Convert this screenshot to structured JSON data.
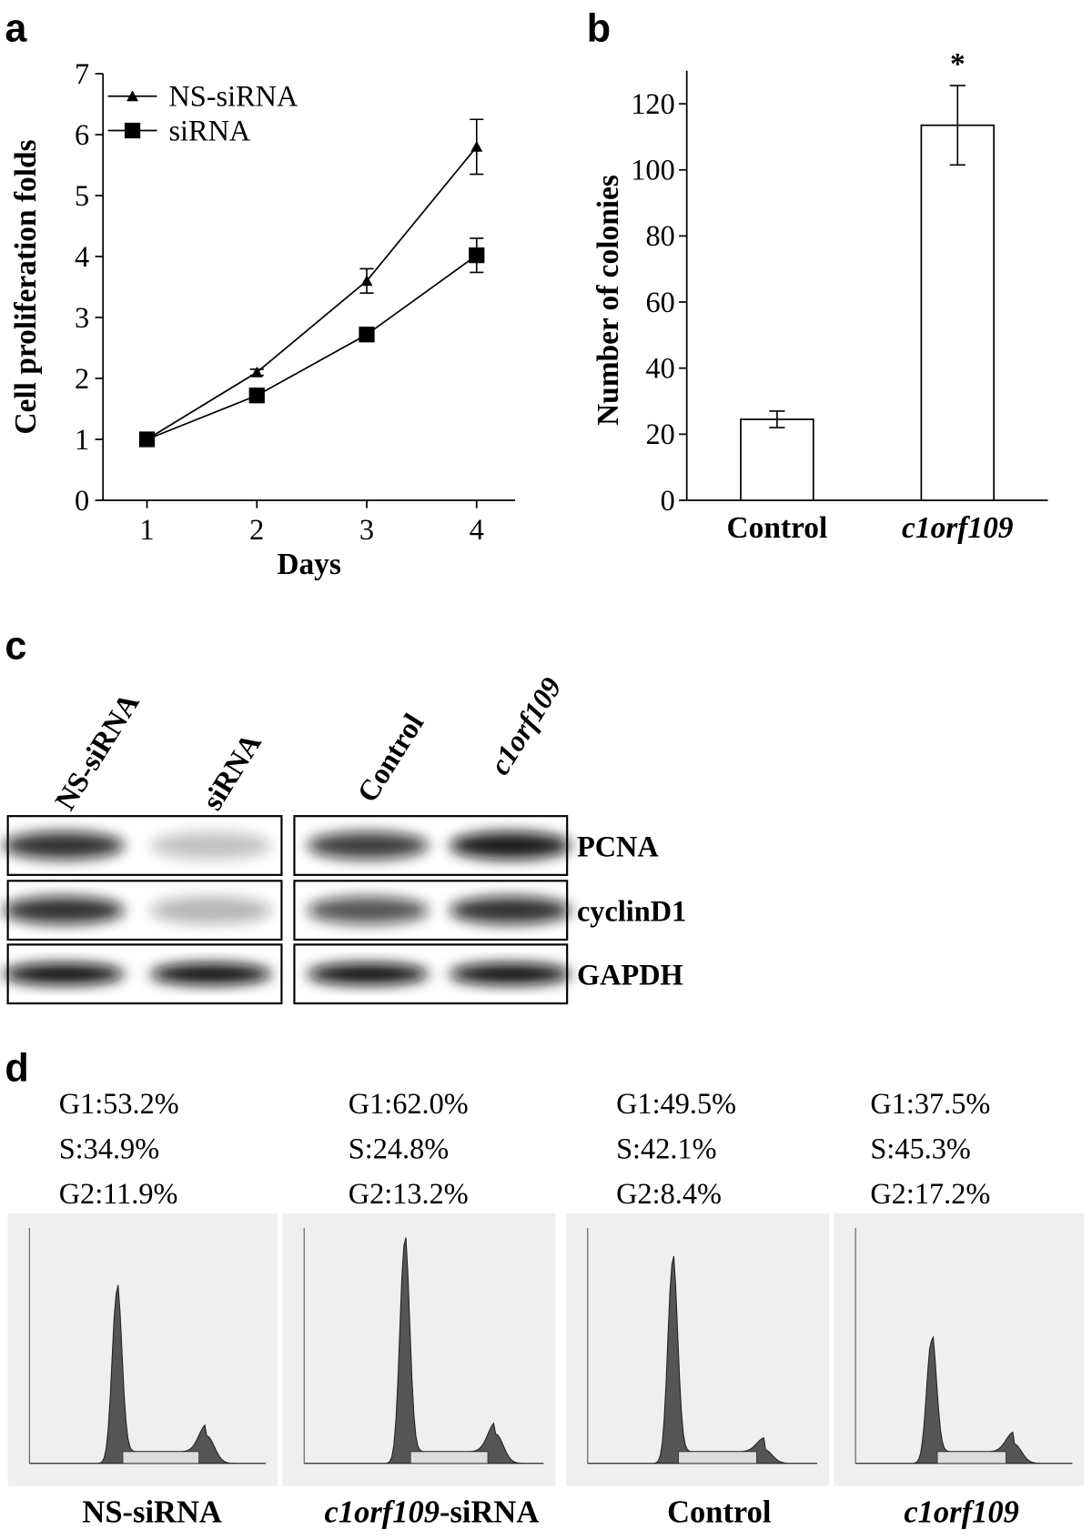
{
  "chart_data": [
    {
      "type": "line",
      "panel": "a",
      "x_label": "Days",
      "y_label": "Cell proliferation folds",
      "x": [
        1,
        2,
        3,
        4
      ],
      "xlim": [
        0.6,
        4.35
      ],
      "xticks": [
        1,
        2,
        3,
        4
      ],
      "ylim": [
        0,
        7
      ],
      "yticks": [
        0,
        1,
        2,
        3,
        4,
        5,
        6,
        7
      ],
      "series": [
        {
          "name": "NS-siRNA",
          "color": "#000000",
          "marker": "triangle",
          "values": [
            1,
            2.1,
            3.6,
            5.8
          ],
          "errors": [
            0.05,
            0.05,
            0.2,
            0.45
          ]
        },
        {
          "name": "siRNA",
          "color": "#000000",
          "marker": "square",
          "values": [
            1,
            1.72,
            2.72,
            4.02
          ],
          "errors": [
            0.05,
            0.08,
            0.1,
            0.28
          ]
        }
      ]
    },
    {
      "type": "bar",
      "panel": "b",
      "y_label": "Number of colonies",
      "categories": [
        "Control",
        "c1orf109"
      ],
      "values": [
        24.5,
        113.5
      ],
      "errors": [
        2.5,
        12
      ],
      "color": "#ffffff",
      "ylim": [
        0,
        130
      ],
      "yticks": [
        0,
        20,
        40,
        60,
        80,
        100,
        120
      ],
      "annotation": "*"
    }
  ],
  "blot": {
    "panel": "c",
    "lanes": [
      "NS-siRNA",
      "siRNA",
      "Control",
      "c1orf109"
    ],
    "proteins": [
      "PCNA",
      "cyclinD1",
      "GAPDH"
    ]
  },
  "flow": {
    "panel": "d",
    "samples": [
      {
        "stats": [
          "G1:53.2%",
          "S:34.9%",
          "G2:11.9%"
        ],
        "label": [
          "NS-siRNA"
        ]
      },
      {
        "stats": [
          "G1:62.0%",
          "S:24.8%",
          "G2:13.2%"
        ],
        "label": [
          "c1orf109",
          "-siRNA"
        ]
      },
      {
        "stats": [
          "G1:49.5%",
          "S:42.1%",
          "G2:8.4%"
        ],
        "label": [
          "Control"
        ]
      },
      {
        "stats": [
          "G1:37.5%",
          "S:45.3%",
          "G2:17.2%"
        ],
        "label": [
          "c1orf109"
        ]
      }
    ]
  }
}
